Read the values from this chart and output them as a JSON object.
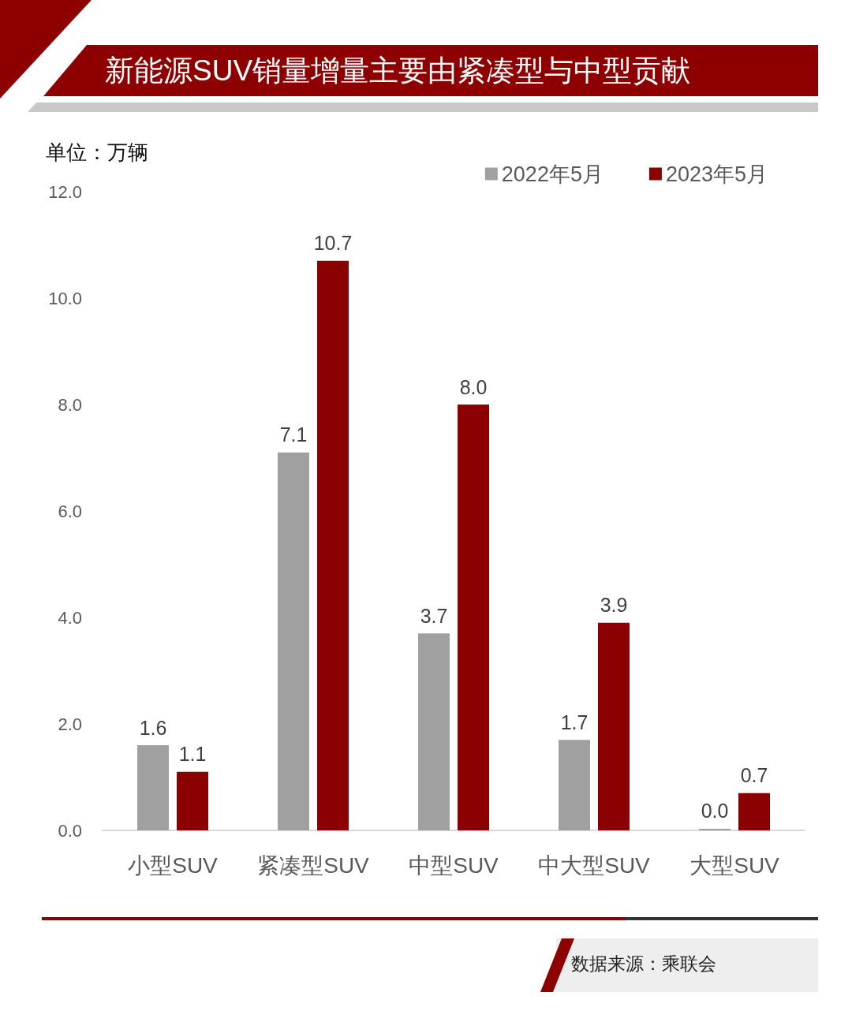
{
  "chart_data": {
    "type": "bar",
    "title": "新能源SUV销量增量主要由紧凑型与中型贡献",
    "ylabel": "单位：万辆",
    "categories": [
      "小型SUV",
      "紧凑型SUV",
      "中型SUV",
      "中大型SUV",
      "大型SUV"
    ],
    "series": [
      {
        "name": "2022年5月",
        "color": "#a0a0a0",
        "values": [
          1.6,
          7.1,
          3.7,
          1.7,
          0.03
        ],
        "value_labels": [
          "1.6",
          "7.1",
          "3.7",
          "1.7",
          "0.0"
        ]
      },
      {
        "name": "2023年5月",
        "color": "#8b0000",
        "values": [
          1.1,
          10.7,
          8.0,
          3.9,
          0.7
        ],
        "value_labels": [
          "1.1",
          "10.7",
          "8.0",
          "3.9",
          "0.7"
        ]
      }
    ],
    "ylim": [
      0,
      12
    ],
    "yticks": [
      {
        "value": 0,
        "label": "0.0"
      },
      {
        "value": 2,
        "label": "2.0"
      },
      {
        "value": 4,
        "label": "4.0"
      },
      {
        "value": 6,
        "label": "6.0"
      },
      {
        "value": 8,
        "label": "8.0"
      },
      {
        "value": 10,
        "label": "10.0"
      },
      {
        "value": 12,
        "label": "12.0"
      }
    ],
    "grid": false,
    "legend": "top right",
    "annotations": [
      "数据来源：乘联会"
    ]
  }
}
